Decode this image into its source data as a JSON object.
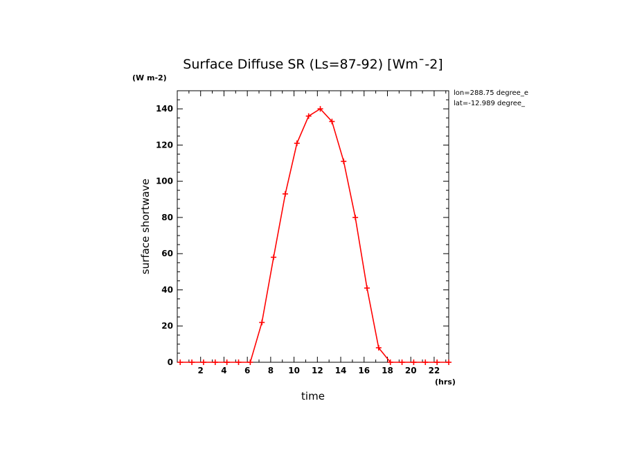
{
  "chart_data": {
    "type": "line",
    "title": "Surface Diffuse SR (Ls=87-92) [Wm¯-2]",
    "y_unit_label": "(W m-2)",
    "x_unit_label": "(hrs)",
    "xlabel": "time",
    "ylabel": "surface shortwave",
    "annotations": [
      "lon=288.75 degree_e",
      "lat=-12.989 degree_"
    ],
    "xlim": [
      0,
      23.25
    ],
    "ylim": [
      0,
      150
    ],
    "x_ticks": [
      2,
      4,
      6,
      8,
      10,
      12,
      14,
      16,
      18,
      20,
      22
    ],
    "y_ticks": [
      0,
      20,
      40,
      60,
      80,
      100,
      120,
      140
    ],
    "grid": false,
    "series": [
      {
        "color": "#ff0000",
        "x": [
          0.25,
          1.25,
          2.25,
          3.25,
          4.25,
          5.25,
          6.25,
          7.25,
          8.25,
          9.25,
          10.25,
          11.25,
          12.25,
          13.25,
          14.25,
          15.25,
          16.25,
          17.25,
          18.25,
          19.25,
          20.25,
          21.25,
          22.25,
          23.25
        ],
        "y": [
          0,
          0,
          0,
          0,
          0,
          0,
          0,
          22,
          58,
          93,
          121,
          136,
          140,
          133,
          111,
          80,
          41,
          8,
          0,
          0,
          0,
          0,
          0,
          0
        ]
      }
    ]
  }
}
